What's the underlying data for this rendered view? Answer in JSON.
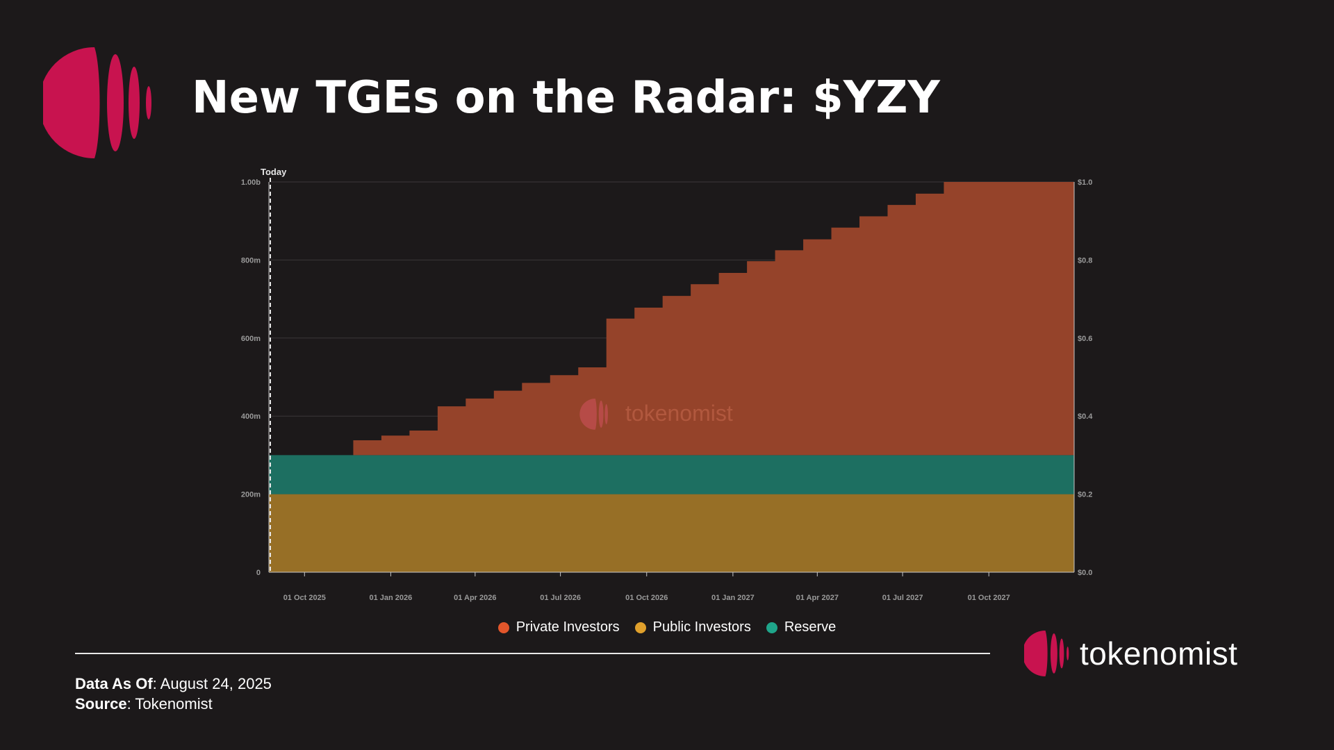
{
  "header": {
    "title": "New TGEs on the Radar: $YZY"
  },
  "colors": {
    "background": "#1c191a",
    "brand": "#c8134f",
    "private_investors": "#95432a",
    "public_investors": "#976f26",
    "reserve": "#1d6f61",
    "legend_private": "#e2562b",
    "legend_public": "#e0a02c",
    "legend_reserve": "#1fa58a"
  },
  "chart_data": {
    "type": "area",
    "stacked": true,
    "step": true,
    "watermark": "tokenomist",
    "today_label": "Today",
    "today_date": "2025-08-24",
    "x_range": [
      "2025-08-24",
      "2027-12-31"
    ],
    "x_tick_dates": [
      "2025-10-01",
      "2026-01-01",
      "2026-04-01",
      "2026-07-01",
      "2026-10-01",
      "2027-01-01",
      "2027-04-01",
      "2027-07-01",
      "2027-10-01"
    ],
    "x_tick_labels": [
      "01 Oct 2025",
      "01 Jan 2026",
      "01 Apr 2026",
      "01 Jul 2026",
      "01 Oct 2026",
      "01 Jan 2027",
      "01 Apr 2027",
      "01 Jul 2027",
      "01 Oct 2027"
    ],
    "y_left_ticks": [
      0,
      200000000,
      400000000,
      600000000,
      800000000,
      1000000000
    ],
    "y_left_tick_labels": [
      "0",
      "200m",
      "400m",
      "600m",
      "800m",
      "1.00b"
    ],
    "y_left_range": [
      0,
      1000000000
    ],
    "y_right_tick_labels": [
      "$0.0",
      "$0.2",
      "$0.4",
      "$0.6",
      "$0.8",
      "$1.0"
    ],
    "y_right_range": [
      0,
      1.0
    ],
    "grid": true,
    "legend_position": "bottom",
    "series": [
      {
        "name": "Public Investors",
        "dates": [
          "2025-08-24",
          "2027-12-31"
        ],
        "values": [
          200000000,
          200000000
        ]
      },
      {
        "name": "Reserve",
        "dates": [
          "2025-08-24",
          "2027-12-31"
        ],
        "values": [
          100000000,
          100000000
        ]
      },
      {
        "name": "Private Investors",
        "dates": [
          "2025-08-24",
          "2025-11-22",
          "2025-12-22",
          "2026-01-21",
          "2026-02-20",
          "2026-03-22",
          "2026-04-21",
          "2026-05-21",
          "2026-06-20",
          "2026-07-20",
          "2026-08-19",
          "2026-09-18",
          "2026-10-18",
          "2026-11-17",
          "2026-12-17",
          "2027-01-16",
          "2027-02-15",
          "2027-03-17",
          "2027-04-16",
          "2027-05-16",
          "2027-06-15",
          "2027-07-15",
          "2027-08-14",
          "2027-09-13",
          "2027-12-31"
        ],
        "values": [
          0,
          38000000,
          50000000,
          63000000,
          125000000,
          145000000,
          165000000,
          185000000,
          205000000,
          225000000,
          350000000,
          378000000,
          408000000,
          438000000,
          467000000,
          497000000,
          525000000,
          553000000,
          583000000,
          612000000,
          641000000,
          670000000,
          700000000,
          700000000,
          700000000
        ]
      }
    ]
  },
  "legend": [
    {
      "label": "Private Investors"
    },
    {
      "label": "Public Investors"
    },
    {
      "label": "Reserve"
    }
  ],
  "footer": {
    "data_as_of_label": "Data As Of",
    "data_as_of_value": ": August 24, 2025",
    "source_label": "Source",
    "source_value": ": Tokenomist",
    "brand_name": "tokenomist"
  }
}
